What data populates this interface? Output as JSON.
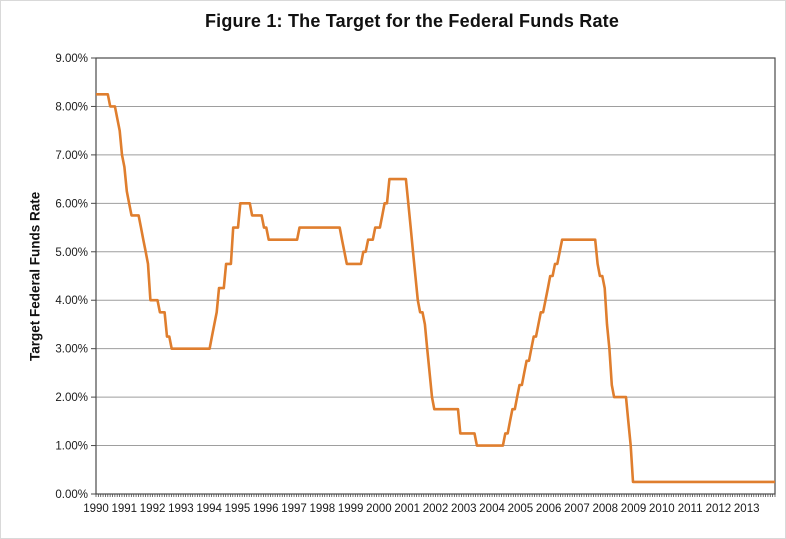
{
  "chart_data": {
    "type": "line",
    "title": "Figure 1: The Target for the Federal Funds Rate",
    "ylabel": "Target Federal Funds Rate",
    "xlabel": "",
    "ylim": [
      0,
      9
    ],
    "grid": "horizontal",
    "legend": "none",
    "background_color": "#ffffff",
    "line_color": "#DF7E2E",
    "grid_color": "#9e9e9e",
    "axis_color": "#4a4a4a",
    "y_ticks": [
      "9.00%",
      "8.00%",
      "7.00%",
      "6.00%",
      "5.00%",
      "4.00%",
      "3.00%",
      "2.00%",
      "1.00%",
      "0.00%"
    ],
    "x_tick_labels": [
      "1990",
      "1991",
      "1992",
      "1993",
      "1994",
      "1995",
      "1996",
      "1997",
      "1998",
      "1999",
      "2000",
      "2001",
      "2002",
      "2003",
      "2004",
      "2005",
      "2006",
      "2007",
      "2008",
      "2009",
      "2010",
      "2011",
      "2012",
      "2013"
    ],
    "x_start": "1990-01",
    "x_end": "2013-12",
    "frequency": "monthly",
    "unit": "percent",
    "series": [
      {
        "name": "Target Federal Funds Rate",
        "values": [
          8.25,
          8.25,
          8.25,
          8.25,
          8.25,
          8.25,
          8.0,
          8.0,
          8.0,
          7.75,
          7.5,
          7.0,
          6.75,
          6.25,
          6.0,
          5.75,
          5.75,
          5.75,
          5.75,
          5.5,
          5.25,
          5.0,
          4.75,
          4.0,
          4.0,
          4.0,
          4.0,
          3.75,
          3.75,
          3.75,
          3.25,
          3.25,
          3.0,
          3.0,
          3.0,
          3.0,
          3.0,
          3.0,
          3.0,
          3.0,
          3.0,
          3.0,
          3.0,
          3.0,
          3.0,
          3.0,
          3.0,
          3.0,
          3.0,
          3.25,
          3.5,
          3.75,
          4.25,
          4.25,
          4.25,
          4.75,
          4.75,
          4.75,
          5.5,
          5.5,
          5.5,
          6.0,
          6.0,
          6.0,
          6.0,
          6.0,
          5.75,
          5.75,
          5.75,
          5.75,
          5.75,
          5.5,
          5.5,
          5.25,
          5.25,
          5.25,
          5.25,
          5.25,
          5.25,
          5.25,
          5.25,
          5.25,
          5.25,
          5.25,
          5.25,
          5.25,
          5.5,
          5.5,
          5.5,
          5.5,
          5.5,
          5.5,
          5.5,
          5.5,
          5.5,
          5.5,
          5.5,
          5.5,
          5.5,
          5.5,
          5.5,
          5.5,
          5.5,
          5.5,
          5.25,
          5.0,
          4.75,
          4.75,
          4.75,
          4.75,
          4.75,
          4.75,
          4.75,
          5.0,
          5.0,
          5.25,
          5.25,
          5.25,
          5.5,
          5.5,
          5.5,
          5.75,
          6.0,
          6.0,
          6.5,
          6.5,
          6.5,
          6.5,
          6.5,
          6.5,
          6.5,
          6.5,
          6.0,
          5.5,
          5.0,
          4.5,
          4.0,
          3.75,
          3.75,
          3.5,
          3.0,
          2.5,
          2.0,
          1.75,
          1.75,
          1.75,
          1.75,
          1.75,
          1.75,
          1.75,
          1.75,
          1.75,
          1.75,
          1.75,
          1.25,
          1.25,
          1.25,
          1.25,
          1.25,
          1.25,
          1.25,
          1.0,
          1.0,
          1.0,
          1.0,
          1.0,
          1.0,
          1.0,
          1.0,
          1.0,
          1.0,
          1.0,
          1.0,
          1.25,
          1.25,
          1.5,
          1.75,
          1.75,
          2.0,
          2.25,
          2.25,
          2.5,
          2.75,
          2.75,
          3.0,
          3.25,
          3.25,
          3.5,
          3.75,
          3.75,
          4.0,
          4.25,
          4.5,
          4.5,
          4.75,
          4.75,
          5.0,
          5.25,
          5.25,
          5.25,
          5.25,
          5.25,
          5.25,
          5.25,
          5.25,
          5.25,
          5.25,
          5.25,
          5.25,
          5.25,
          5.25,
          5.25,
          4.75,
          4.5,
          4.5,
          4.25,
          3.5,
          3.0,
          2.25,
          2.0,
          2.0,
          2.0,
          2.0,
          2.0,
          2.0,
          1.5,
          1.0,
          0.25,
          0.25,
          0.25,
          0.25,
          0.25,
          0.25,
          0.25,
          0.25,
          0.25,
          0.25,
          0.25,
          0.25,
          0.25,
          0.25,
          0.25,
          0.25,
          0.25,
          0.25,
          0.25,
          0.25,
          0.25,
          0.25,
          0.25,
          0.25,
          0.25,
          0.25,
          0.25,
          0.25,
          0.25,
          0.25,
          0.25,
          0.25,
          0.25,
          0.25,
          0.25,
          0.25,
          0.25,
          0.25,
          0.25,
          0.25,
          0.25,
          0.25,
          0.25,
          0.25,
          0.25,
          0.25,
          0.25,
          0.25,
          0.25,
          0.25,
          0.25,
          0.25,
          0.25,
          0.25,
          0.25,
          0.25,
          0.25,
          0.25,
          0.25,
          0.25,
          0.25
        ]
      }
    ]
  }
}
